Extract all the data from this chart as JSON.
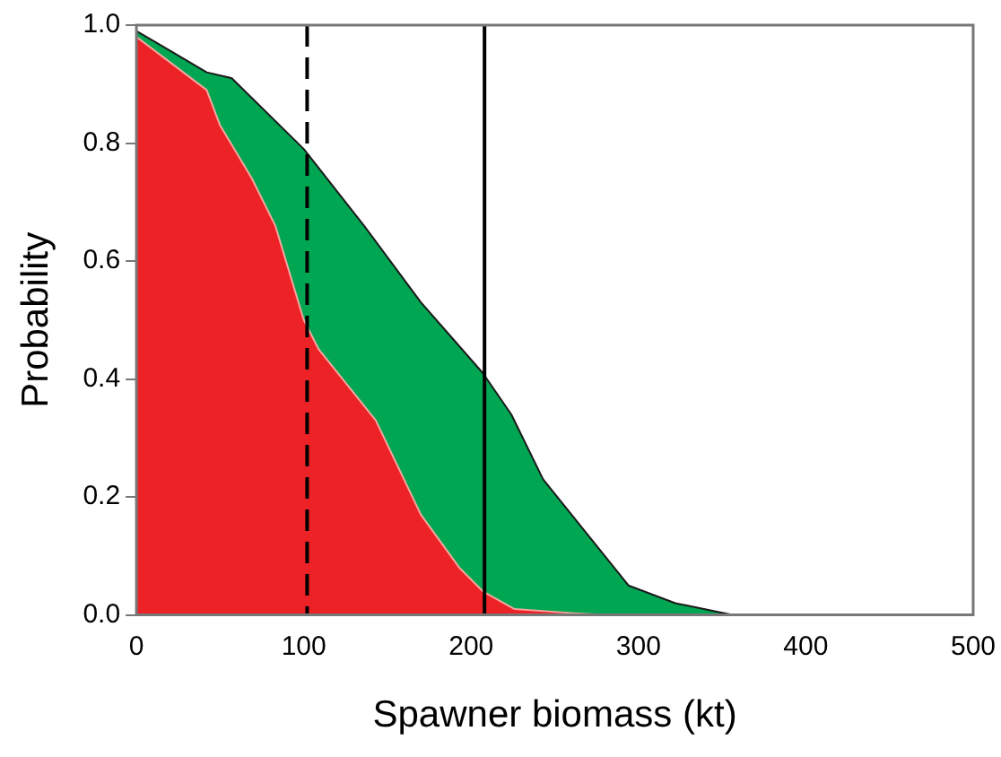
{
  "chart_data": {
    "type": "area",
    "xlabel": "Spawner biomass (kt)",
    "ylabel": "Probability",
    "xlim": [
      0,
      500
    ],
    "xticks": [
      0,
      100,
      200,
      300,
      400,
      500
    ],
    "ylim": [
      0,
      1
    ],
    "yticks": [
      {
        "value": 0,
        "label": "0.0"
      },
      {
        "value": 0.2,
        "label": "0.2"
      },
      {
        "value": 0.4,
        "label": "0.4"
      },
      {
        "value": 0.6,
        "label": "0.6"
      },
      {
        "value": 0.8,
        "label": "0.8"
      },
      {
        "value": 1,
        "label": "1.0"
      }
    ],
    "grid": false,
    "legend": false,
    "series": [
      {
        "color": "#00a651",
        "x": [
          0,
          12,
          42,
          57,
          100,
          136,
          170,
          207,
          224,
          243,
          294,
          322,
          356,
          500
        ],
        "values": [
          0.99,
          0.97,
          0.92,
          0.91,
          0.79,
          0.66,
          0.53,
          0.41,
          0.34,
          0.23,
          0.05,
          0.02,
          0,
          0
        ]
      },
      {
        "color": "#ec2227",
        "x": [
          0,
          42,
          50,
          69,
          83,
          100,
          109,
          143,
          170,
          193,
          207,
          226,
          261,
          280,
          500
        ],
        "values": [
          0.98,
          0.89,
          0.83,
          0.74,
          0.66,
          0.5,
          0.45,
          0.33,
          0.17,
          0.08,
          0.04,
          0.01,
          0.003,
          0,
          0
        ]
      }
    ],
    "ref_lines": [
      {
        "axis": "x",
        "value": 102,
        "line_style": "dashed",
        "color": "#000000"
      },
      {
        "axis": "x",
        "value": 208,
        "line_style": "solid",
        "color": "#000000"
      }
    ]
  }
}
